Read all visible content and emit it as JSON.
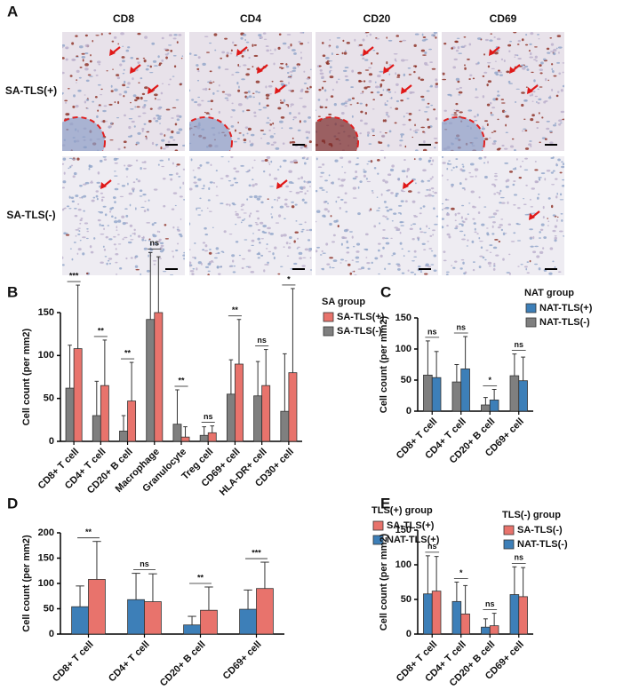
{
  "panel_a": {
    "letter": "A",
    "columns": [
      "CD8",
      "CD4",
      "CD20",
      "CD69"
    ],
    "rows": [
      "SA-TLS(+)",
      "SA-TLS(-)"
    ]
  },
  "chart_data": [
    {
      "type": "bar",
      "letter": "B",
      "y_label": "Cell count (per mm2)",
      "legend_title": "SA group",
      "categories": [
        "CD8+ T cell",
        "CD4+ T cell",
        "CD20+ B cell",
        "Macrophage",
        "Granulocyte",
        "Treg cell",
        "CD69+ cell",
        "HLA-DR+ cell",
        "CD30+ cell"
      ],
      "series": [
        {
          "name": "SA-TLS(+)",
          "color": "#e8736c",
          "values": [
            108,
            65,
            47,
            150,
            5,
            10,
            90,
            65,
            80
          ],
          "errors": [
            74,
            53,
            45,
            65,
            12,
            8,
            52,
            42,
            98
          ]
        },
        {
          "name": "SA-TLS(-)",
          "color": "#7f7f7f",
          "values": [
            62,
            30,
            12,
            142,
            20,
            7,
            55,
            53,
            35
          ],
          "errors": [
            50,
            40,
            18,
            78,
            40,
            10,
            40,
            40,
            67
          ]
        }
      ],
      "significance": [
        "***",
        "**",
        "**",
        "ns",
        "**",
        "ns",
        "**",
        "ns",
        "*"
      ],
      "ylim": [
        0,
        150
      ],
      "yticks": [
        0,
        50,
        100,
        150
      ]
    },
    {
      "type": "bar",
      "letter": "C",
      "y_label": "Cell count (per mm2)",
      "legend_title": "NAT group",
      "categories": [
        "CD8+ T cell",
        "CD4+ T cell",
        "CD20+ B cell",
        "CD69+ cell"
      ],
      "series": [
        {
          "name": "NAT-TLS(+)",
          "color": "#3d7fb8",
          "values": [
            54,
            68,
            18,
            49
          ],
          "errors": [
            42,
            52,
            17,
            38
          ]
        },
        {
          "name": "NAT-TLS(-)",
          "color": "#7f7f7f",
          "values": [
            58,
            47,
            10,
            57
          ],
          "errors": [
            55,
            28,
            12,
            35
          ]
        }
      ],
      "significance": [
        "ns",
        "ns",
        "*",
        "ns"
      ],
      "ylim": [
        0,
        150
      ],
      "yticks": [
        0,
        50,
        100,
        150
      ]
    },
    {
      "type": "bar",
      "letter": "D",
      "y_label": "Cell count (per mm2)",
      "legend_title": "TLS(+) group",
      "categories": [
        "CD8+ T cell",
        "CD4+ T cell",
        "CD20+ B cell",
        "CD69+ cell"
      ],
      "series": [
        {
          "name": "SA-TLS(+)",
          "color": "#e8736c",
          "values": [
            108,
            64,
            47,
            90
          ],
          "errors": [
            75,
            55,
            46,
            52
          ]
        },
        {
          "name": "NAT-TLS(+)",
          "color": "#3d7fb8",
          "values": [
            54,
            68,
            18,
            49
          ],
          "errors": [
            41,
            52,
            17,
            38
          ]
        }
      ],
      "significance": [
        "**",
        "ns",
        "**",
        "***"
      ],
      "ylim": [
        0,
        200
      ],
      "yticks": [
        0,
        50,
        100,
        150,
        200
      ]
    },
    {
      "type": "bar",
      "letter": "E",
      "y_label": "Cell count (per mm2)",
      "legend_title": "TLS(-) group",
      "categories": [
        "CD8+ T cell",
        "CD4+ T cell",
        "CD20+ B cell",
        "CD69+ cell"
      ],
      "series": [
        {
          "name": "SA-TLS(-)",
          "color": "#e8736c",
          "values": [
            62,
            29,
            12,
            54
          ],
          "errors": [
            50,
            41,
            18,
            42
          ]
        },
        {
          "name": "NAT-TLS(-)",
          "color": "#3d7fb8",
          "values": [
            58,
            47,
            10,
            57
          ],
          "errors": [
            55,
            28,
            12,
            40
          ]
        }
      ],
      "significance": [
        "ns",
        "*",
        "ns",
        "ns"
      ],
      "ylim": [
        0,
        150
      ],
      "yticks": [
        0,
        50,
        100,
        150
      ]
    }
  ]
}
